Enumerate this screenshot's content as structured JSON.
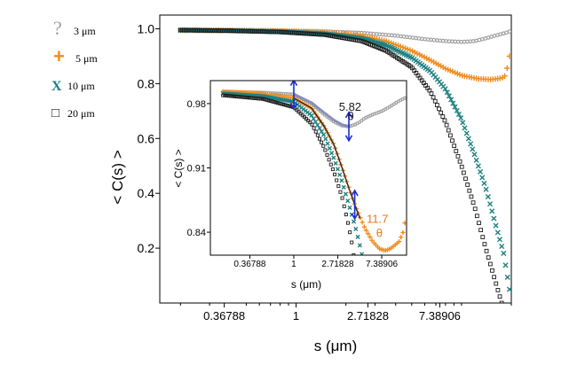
{
  "chart_data": {
    "type": "scatter",
    "xscale": "log",
    "xlabel": "s (μm)",
    "ylabel": "< C(s) >",
    "xticks": [
      "0.36788",
      "1",
      "2.71828",
      "7.38906"
    ],
    "yticks": [
      "0.2",
      "0.4",
      "0.6",
      "0.8",
      "1.0"
    ],
    "xlim": [
      0.15,
      20.0
    ],
    "ylim": [
      0.0,
      1.05
    ],
    "legend_position": "top-left, outside the plot",
    "series": [
      {
        "name": "3 μm",
        "marker": "?",
        "color": "#a0a0a0",
        "points": [
          [
            0.2,
            0.995
          ],
          [
            0.4,
            0.994
          ],
          [
            0.8,
            0.993
          ],
          [
            1.5,
            0.99
          ],
          [
            2.5,
            0.985
          ],
          [
            4.0,
            0.975
          ],
          [
            6.0,
            0.962
          ],
          [
            8.0,
            0.955
          ],
          [
            10.0,
            0.952
          ],
          [
            12.0,
            0.955
          ],
          [
            14.0,
            0.965
          ],
          [
            16.0,
            0.975
          ],
          [
            18.5,
            0.985
          ],
          [
            19.5,
            0.99
          ]
        ]
      },
      {
        "name": "5 μm",
        "marker": "+",
        "color": "#f08c1e",
        "points": [
          [
            0.2,
            0.995
          ],
          [
            0.4,
            0.994
          ],
          [
            0.8,
            0.992
          ],
          [
            1.5,
            0.988
          ],
          [
            2.5,
            0.975
          ],
          [
            3.5,
            0.955
          ],
          [
            5.0,
            0.92
          ],
          [
            6.5,
            0.885
          ],
          [
            8.0,
            0.855
          ],
          [
            10.0,
            0.83
          ],
          [
            12.5,
            0.818
          ],
          [
            15.0,
            0.815
          ],
          [
            17.5,
            0.82
          ],
          [
            18.5,
            0.83
          ],
          [
            19.5,
            0.9
          ]
        ]
      },
      {
        "name": "10 μm",
        "marker": "X",
        "color": "#1e7f80",
        "points": [
          [
            0.2,
            0.995
          ],
          [
            0.4,
            0.993
          ],
          [
            0.8,
            0.99
          ],
          [
            1.5,
            0.982
          ],
          [
            2.5,
            0.965
          ],
          [
            3.5,
            0.94
          ],
          [
            5.0,
            0.895
          ],
          [
            6.5,
            0.845
          ],
          [
            8.0,
            0.78
          ],
          [
            10.0,
            0.67
          ],
          [
            12.0,
            0.54
          ],
          [
            14.0,
            0.42
          ],
          [
            16.0,
            0.29
          ],
          [
            18.0,
            0.18
          ],
          [
            19.5,
            0.05
          ]
        ]
      },
      {
        "name": "20 μm",
        "marker": "□",
        "color": "#1a1a1a",
        "points": [
          [
            0.2,
            0.995
          ],
          [
            0.4,
            0.993
          ],
          [
            0.8,
            0.988
          ],
          [
            1.5,
            0.978
          ],
          [
            2.5,
            0.955
          ],
          [
            3.5,
            0.92
          ],
          [
            5.0,
            0.86
          ],
          [
            6.5,
            0.77
          ],
          [
            8.0,
            0.66
          ],
          [
            10.0,
            0.5
          ],
          [
            12.0,
            0.35
          ],
          [
            14.0,
            0.2
          ],
          [
            16.0,
            0.08
          ],
          [
            17.5,
            0.0
          ]
        ]
      }
    ],
    "inset": {
      "xscale": "log",
      "xlabel": "s (μm)",
      "ylabel": "< C(s) >",
      "xticks": [
        "0.36788",
        "1",
        "2.71828",
        "7.38906"
      ],
      "yticks": [
        "0.84",
        "0.91",
        "0.98"
      ],
      "xlim": [
        0.15,
        13.0
      ],
      "ylim": [
        0.815,
        1.005
      ],
      "series": [
        {
          "name": "3 μm",
          "points": [
            [
              0.2,
              0.993
            ],
            [
              0.5,
              0.992
            ],
            [
              1.0,
              0.99
            ],
            [
              1.5,
              0.98
            ],
            [
              2.0,
              0.968
            ],
            [
              2.5,
              0.96
            ],
            [
              3.0,
              0.956
            ],
            [
              3.5,
              0.955
            ],
            [
              4.0,
              0.957
            ],
            [
              4.5,
              0.96
            ],
            [
              5.0,
              0.964
            ],
            [
              6.0,
              0.968
            ],
            [
              7.5,
              0.972
            ],
            [
              9.0,
              0.977
            ],
            [
              11.0,
              0.983
            ],
            [
              12.5,
              0.986
            ]
          ]
        },
        {
          "name": "5 μm",
          "points": [
            [
              0.2,
              0.993
            ],
            [
              0.5,
              0.991
            ],
            [
              1.0,
              0.986
            ],
            [
              1.5,
              0.975
            ],
            [
              2.0,
              0.955
            ],
            [
              2.5,
              0.935
            ],
            [
              3.0,
              0.91
            ],
            [
              4.0,
              0.87
            ],
            [
              5.0,
              0.845
            ],
            [
              6.0,
              0.83
            ],
            [
              7.0,
              0.822
            ],
            [
              8.0,
              0.82
            ],
            [
              9.0,
              0.822
            ],
            [
              10.0,
              0.826
            ],
            [
              11.0,
              0.83
            ],
            [
              12.0,
              0.84
            ],
            [
              12.5,
              0.85
            ]
          ]
        },
        {
          "name": "10 μm",
          "points": [
            [
              0.2,
              0.991
            ],
            [
              0.5,
              0.988
            ],
            [
              1.0,
              0.982
            ],
            [
              1.5,
              0.967
            ],
            [
              2.0,
              0.945
            ],
            [
              2.5,
              0.92
            ],
            [
              3.0,
              0.895
            ],
            [
              3.5,
              0.87
            ],
            [
              4.0,
              0.848
            ],
            [
              4.4,
              0.83
            ],
            [
              4.7,
              0.816
            ]
          ]
        },
        {
          "name": "20 μm",
          "points": [
            [
              0.2,
              0.989
            ],
            [
              0.5,
              0.985
            ],
            [
              1.0,
              0.976
            ],
            [
              1.5,
              0.958
            ],
            [
              2.0,
              0.932
            ],
            [
              2.5,
              0.905
            ],
            [
              3.0,
              0.878
            ],
            [
              3.4,
              0.852
            ],
            [
              3.7,
              0.832
            ],
            [
              3.9,
              0.815
            ]
          ]
        }
      ],
      "fit_curves": [
        {
          "color": "#7f86b8",
          "points": [
            [
              1.0,
              0.99
            ],
            [
              1.5,
              0.981
            ],
            [
              2.0,
              0.97
            ],
            [
              2.5,
              0.962
            ],
            [
              3.0,
              0.957
            ],
            [
              3.6,
              0.955
            ]
          ]
        },
        {
          "color": "#2a2a2a",
          "points": [
            [
              1.0,
              0.986
            ],
            [
              1.5,
              0.975
            ],
            [
              2.0,
              0.955
            ],
            [
              2.5,
              0.935
            ],
            [
              3.0,
              0.91
            ],
            [
              3.5,
              0.888
            ],
            [
              4.0,
              0.87
            ],
            [
              4.5,
              0.855
            ]
          ]
        }
      ],
      "markers": [
        {
          "x": 1.0,
          "y": 0.99
        },
        {
          "x": 3.5,
          "y": 0.955
        },
        {
          "x": 4.0,
          "y": 0.87
        }
      ],
      "annotations": [
        {
          "text": "5.82",
          "color": "#1a1a1a",
          "x": 3.6,
          "y": 0.972
        },
        {
          "text": "θ",
          "color": "#1a1a1a",
          "x": 3.65,
          "y": 0.962
        },
        {
          "text": "11.7",
          "color": "#e8761e",
          "x": 6.7,
          "y": 0.85
        },
        {
          "text": "θ",
          "color": "#e8761e",
          "x": 7.0,
          "y": 0.835
        }
      ]
    }
  }
}
